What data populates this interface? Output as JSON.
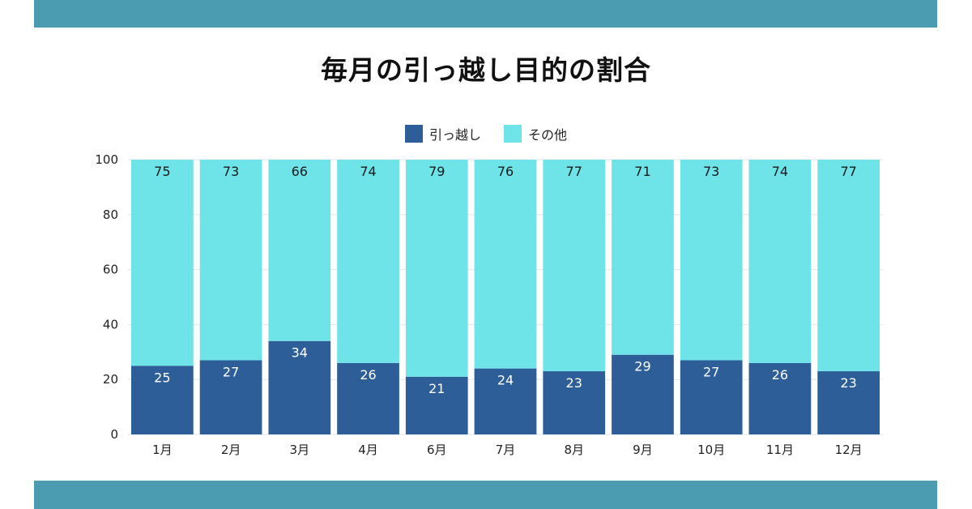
{
  "title": "毎月の引っ越し目的の割合",
  "chart_data": {
    "type": "bar",
    "stacked": true,
    "categories": [
      "1月",
      "2月",
      "3月",
      "4月",
      "6月",
      "7月",
      "8月",
      "9月",
      "10月",
      "11月",
      "12月"
    ],
    "series": [
      {
        "name": "引っ越し",
        "color": "#2e5e98",
        "values": [
          25,
          27,
          34,
          26,
          21,
          24,
          23,
          29,
          27,
          26,
          23
        ]
      },
      {
        "name": "その他",
        "color": "#6ee3e8",
        "values": [
          75,
          73,
          66,
          74,
          79,
          76,
          77,
          71,
          73,
          74,
          77
        ]
      }
    ],
    "ylim": [
      0,
      100
    ],
    "yticks": [
      0,
      20,
      40,
      60,
      80,
      100
    ],
    "data_labels": true,
    "legend": "top-center",
    "grid": true
  },
  "colors": {
    "band": "#4b9cb0"
  }
}
